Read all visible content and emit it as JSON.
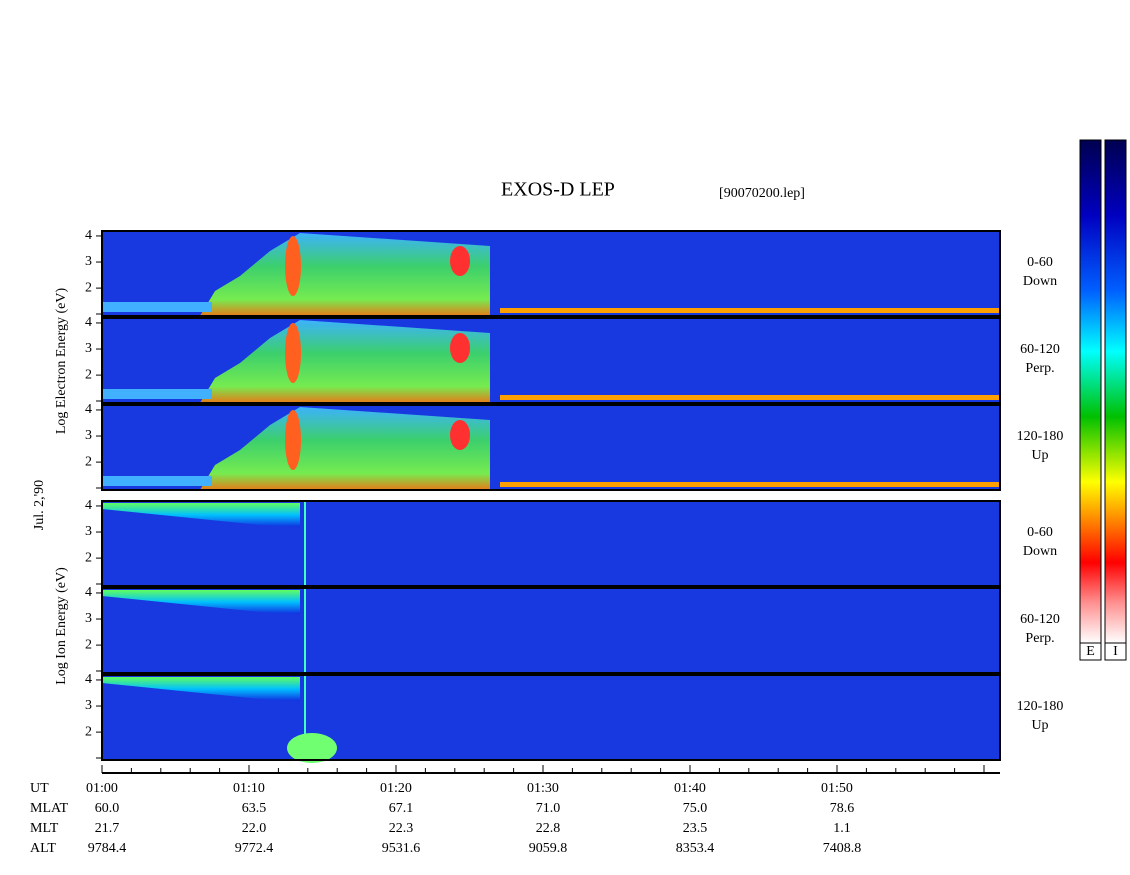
{
  "title": "EXOS-D LEP",
  "file": "[90070200.lep]",
  "date": "Jul. 2,'90",
  "energy_axis": {
    "ylim": [
      0.93,
      4.19
    ],
    "yticks": [
      2,
      3,
      4
    ]
  },
  "groups": [
    {
      "label": "Log Electron Energy (eV)",
      "panels": [
        {
          "pitch": "0-60",
          "direction": "Down"
        },
        {
          "pitch": "60-120",
          "direction": "Perp."
        },
        {
          "pitch": "120-180",
          "direction": "Up"
        }
      ]
    },
    {
      "label": "Log Ion Energy (eV)",
      "panels": [
        {
          "pitch": "0-60",
          "direction": "Down"
        },
        {
          "pitch": "60-120",
          "direction": "Perp."
        },
        {
          "pitch": "120-180",
          "direction": "Up"
        }
      ]
    }
  ],
  "colorbars": [
    "E",
    "I"
  ],
  "ephemeris": {
    "row_labels": [
      "UT",
      "MLAT",
      "MLT",
      "ALT"
    ],
    "columns": [
      [
        "01:00",
        "60.0",
        "21.7",
        "9784.4"
      ],
      [
        "01:10",
        "63.5",
        "22.0",
        "9772.4"
      ],
      [
        "01:20",
        "67.1",
        "22.3",
        "9531.6"
      ],
      [
        "01:30",
        "71.0",
        "22.8",
        "9059.8"
      ],
      [
        "01:40",
        "75.0",
        "23.5",
        "8353.4"
      ],
      [
        "01:50",
        "78.6",
        "1.1",
        "7408.8"
      ]
    ]
  }
}
